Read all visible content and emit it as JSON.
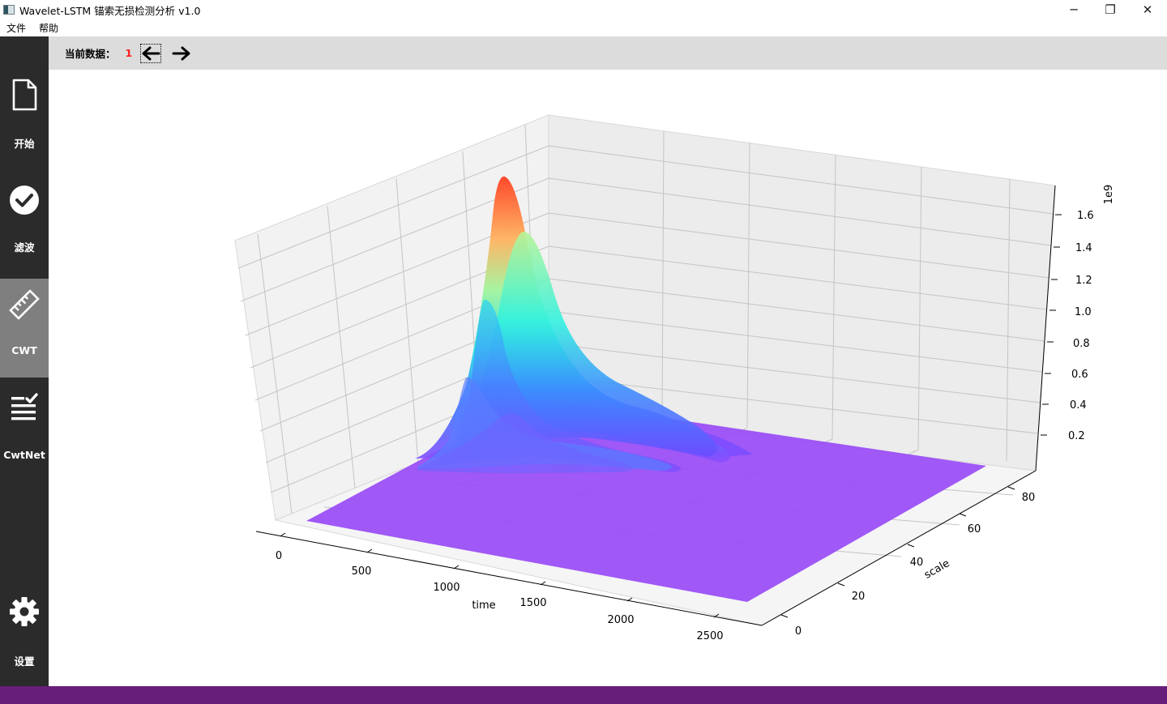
{
  "window": {
    "title": "Wavelet-LSTM 锚索无损检测分析 v1.0",
    "controls": {
      "minimize": "─",
      "maximize": "❐",
      "close": "✕"
    }
  },
  "menu": {
    "items": [
      "文件",
      "帮助"
    ]
  },
  "sidebar": {
    "items": [
      {
        "label": "开始",
        "icon": "document-icon",
        "active": false
      },
      {
        "label": "滤波",
        "icon": "check-circle-icon",
        "active": false
      },
      {
        "label": "CWT",
        "icon": "ruler-icon",
        "active": true
      },
      {
        "label": "CwtNet",
        "icon": "checklist-icon",
        "active": false
      },
      {
        "label": "设置",
        "icon": "gear-icon",
        "active": false
      }
    ]
  },
  "toolbar": {
    "current_label": "当前数据：",
    "current_value": "1",
    "prev_icon": "arrow-left-icon",
    "next_icon": "arrow-right-icon"
  },
  "colors": {
    "sidebar_bg": "#2b2b2b",
    "sidebar_active": "#7f7f7f",
    "toolbar_bg": "#dcdcdc",
    "current_value": "#ff2020",
    "status_strip": "#671e7a",
    "surface_floor": "#9b4ff5"
  },
  "chart_data": {
    "type": "surface3d",
    "colormap": "rainbow",
    "xlabel": "time",
    "ylabel": "scale",
    "zlabel": "",
    "z_offset_label": "1e9",
    "x_ticks": [
      "0",
      "500",
      "1000",
      "1500",
      "2000",
      "2500"
    ],
    "y_ticks": [
      "0",
      "20",
      "40",
      "60",
      "80"
    ],
    "z_ticks": [
      "0.2",
      "0.4",
      "0.6",
      "0.8",
      "1.0",
      "1.2",
      "1.4",
      "1.6"
    ],
    "xlim": [
      0,
      2700
    ],
    "ylim": [
      0,
      90
    ],
    "zlim": [
      0,
      1.75
    ],
    "grid": true,
    "surface": {
      "peak_time": 700,
      "peak_scale": 85,
      "peak_value": 1.7,
      "ridge": [
        {
          "scale": 85,
          "peak": 1.7
        },
        {
          "scale": 70,
          "peak": 1.38
        },
        {
          "scale": 55,
          "peak": 1.15
        },
        {
          "scale": 40,
          "peak": 0.7
        },
        {
          "scale": 25,
          "peak": 0.15
        }
      ]
    }
  }
}
